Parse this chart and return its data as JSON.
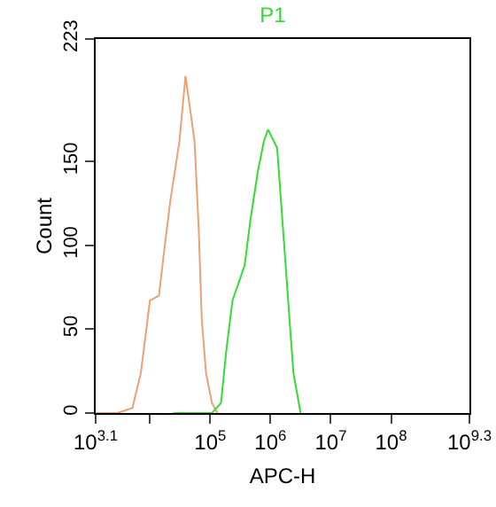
{
  "chart_data": {
    "type": "line",
    "title": "P1",
    "xlabel": "APC-H",
    "ylabel": "Count",
    "log": "x",
    "series": [
      {
        "color": "#f0a070",
        "x": [
          1259,
          2880,
          5130,
          7080,
          10000,
          14100,
          17400,
          21900,
          30900,
          38900,
          55000,
          64600,
          72400,
          85100,
          107000,
          132000
        ],
        "values": [
          0,
          0,
          3,
          24,
          67,
          70,
          98,
          127,
          162,
          201,
          162,
          109,
          56,
          24,
          6,
          0
        ]
      },
      {
        "color": "#33dd33",
        "x": [
          24000,
          107000,
          151000,
          186000,
          234000,
          372000,
          468000,
          617000,
          776000,
          912000,
          1290000,
          1620000,
          2000000,
          2400000,
          3160000
        ],
        "values": [
          0,
          0,
          6,
          38,
          67,
          88,
          116,
          144,
          162,
          169,
          158,
          109,
          63,
          24,
          0
        ]
      }
    ],
    "xlim": [
      1259,
      1995262315
    ],
    "xticks": [
      {
        "value": 1259,
        "label": "10$^{3.1}$"
      },
      {
        "value": 10000,
        "label": null
      },
      {
        "value": 100000,
        "label": "10$^{5}$"
      },
      {
        "value": 1000000,
        "label": "10$^{6}$"
      },
      {
        "value": 10000000,
        "label": "10$^{7}$"
      },
      {
        "value": 100000000,
        "label": "10$^{8}$"
      },
      {
        "value": 1995262315,
        "label": "10$^{9.3}$"
      }
    ],
    "ylim": [
      0,
      223
    ],
    "yticks": [
      0,
      50,
      100,
      150,
      223
    ],
    "grid": false,
    "legend": false,
    "marker": "none",
    "line_style": "solid"
  }
}
